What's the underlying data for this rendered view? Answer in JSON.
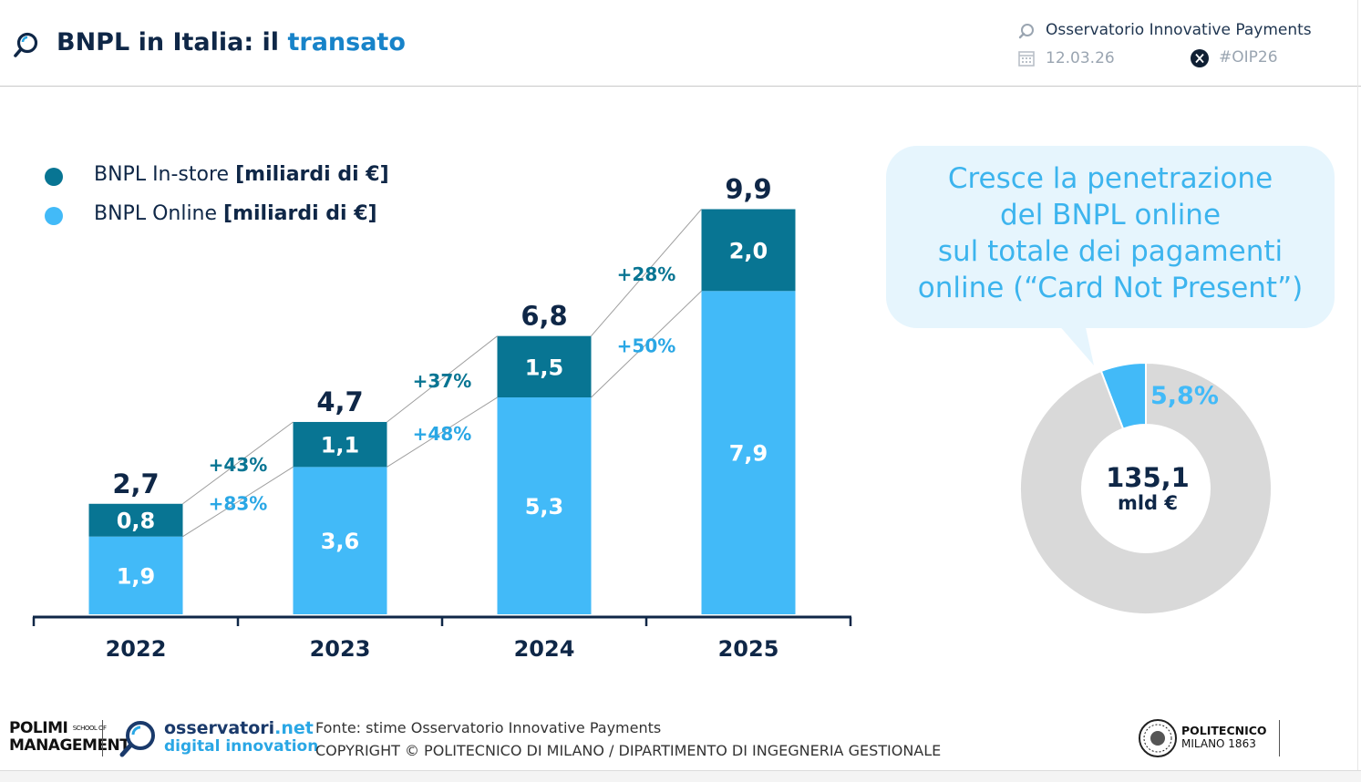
{
  "header": {
    "title_main": "BNPL in Italia: il",
    "title_accent": "transato",
    "observatory": "Osservatorio Innovative Payments",
    "date": "12.03.26",
    "hashtag": "#OIP26"
  },
  "legend": {
    "instore_label": "BNPL In-store",
    "instore_unit": "[miliardi di €]",
    "online_label": "BNPL Online",
    "online_unit": "[miliardi di €]"
  },
  "colors": {
    "instore": "#087593",
    "online": "#42baf8",
    "growth_instore_text": "#087593",
    "growth_online_text": "#2aa7e5",
    "donut_rest": "#d9d9d9",
    "title_dark": "#0f2747",
    "accent": "#1783c9"
  },
  "chart_data": [
    {
      "type": "bar",
      "stacked": true,
      "categories": [
        "2022",
        "2023",
        "2024",
        "2025"
      ],
      "series": [
        {
          "name": "BNPL Online [miliardi di €]",
          "values": [
            1.9,
            3.6,
            5.3,
            7.9
          ],
          "labels": [
            "1,9",
            "3,6",
            "5,3",
            "7,9"
          ]
        },
        {
          "name": "BNPL In-store [miliardi di €]",
          "values": [
            0.8,
            1.1,
            1.5,
            2.0
          ],
          "labels": [
            "0,8",
            "1,1",
            "1,5",
            "2,0"
          ]
        }
      ],
      "totals": [
        2.7,
        4.7,
        6.8,
        9.9
      ],
      "total_labels": [
        "2,7",
        "4,7",
        "6,8",
        "9,9"
      ],
      "growth_instore": [
        "+43%",
        "+37%",
        "+28%"
      ],
      "growth_online": [
        "+83%",
        "+48%",
        "+50%"
      ],
      "ylim": [
        0,
        9.9
      ],
      "grid": false
    },
    {
      "type": "pie",
      "donut": true,
      "slices": [
        {
          "label": "5,8%",
          "value": 5.8
        },
        {
          "label": "",
          "value": 94.2
        }
      ],
      "center_value": "135,1",
      "center_unit": "mld €",
      "callout": [
        "Cresce la penetrazione",
        "del BNPL online",
        "sul totale dei pagamenti",
        "online (“Card Not Present”)"
      ]
    }
  ],
  "footer": {
    "polimi_line1": "POLIMI",
    "polimi_school": "SCHOOL OF",
    "polimi_line2": "MANAGEMENT",
    "osserv_name": "osservatori",
    "osserv_tld": ".net",
    "osserv_sub": "digital innovation",
    "source": "Fonte: stime Osservatorio Innovative Payments",
    "copyright": "COPYRIGHT © POLITECNICO DI MILANO / DIPARTIMENTO DI INGEGNERIA GESTIONALE",
    "politecnico_line1": "POLITECNICO",
    "politecnico_line2": "MILANO 1863"
  }
}
